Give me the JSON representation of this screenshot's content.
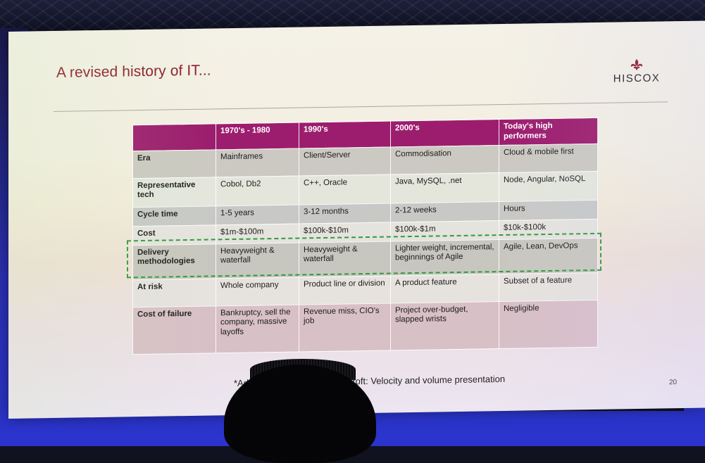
{
  "slide": {
    "title": "A revised history of IT...",
    "brand": "HISCOX",
    "footnote": "*Ad                                       croft: Velocity and volume presentation",
    "page_number": "20"
  },
  "table": {
    "headers": [
      "",
      "1970's - 1980",
      "1990's",
      "2000's",
      "Today's high performers"
    ],
    "rows": [
      {
        "label": "Era",
        "cells": [
          "Mainframes",
          "Client/Server",
          "Commodisation",
          "Cloud & mobile first"
        ]
      },
      {
        "label": "Representative tech",
        "cells": [
          "Cobol, Db2",
          "C++, Oracle",
          "Java, MySQL, .net",
          "Node, Angular, NoSQL"
        ]
      },
      {
        "label": "Cycle time",
        "cells": [
          "1-5 years",
          "3-12 months",
          "2-12 weeks",
          "Hours"
        ]
      },
      {
        "label": "Cost",
        "cells": [
          "$1m-$100m",
          "$100k-$10m",
          "$100k-$1m",
          "$10k-$100k"
        ]
      },
      {
        "label": "Delivery methodologies",
        "cells": [
          "Heavyweight & waterfall",
          "Heavyweight & waterfall",
          "Lighter weight, incremental, beginnings of Agile",
          "Agile, Lean, DevOps"
        ]
      },
      {
        "label": "At risk",
        "cells": [
          "Whole company",
          "Product line or division",
          "A product feature",
          "Subset of a feature"
        ]
      },
      {
        "label": "Cost of failure",
        "cells": [
          "Bankruptcy, sell the company, massive layoffs",
          "Revenue miss, CIO's job",
          "Project over-budget, slapped wrists",
          "Negligible"
        ]
      }
    ]
  },
  "colors": {
    "title": "#8e1b2a",
    "header_bg": "#9c1d6d",
    "highlight_border": "#2f9b3c"
  },
  "icons": {
    "brand_mark": "fleur-de-lis-icon"
  }
}
